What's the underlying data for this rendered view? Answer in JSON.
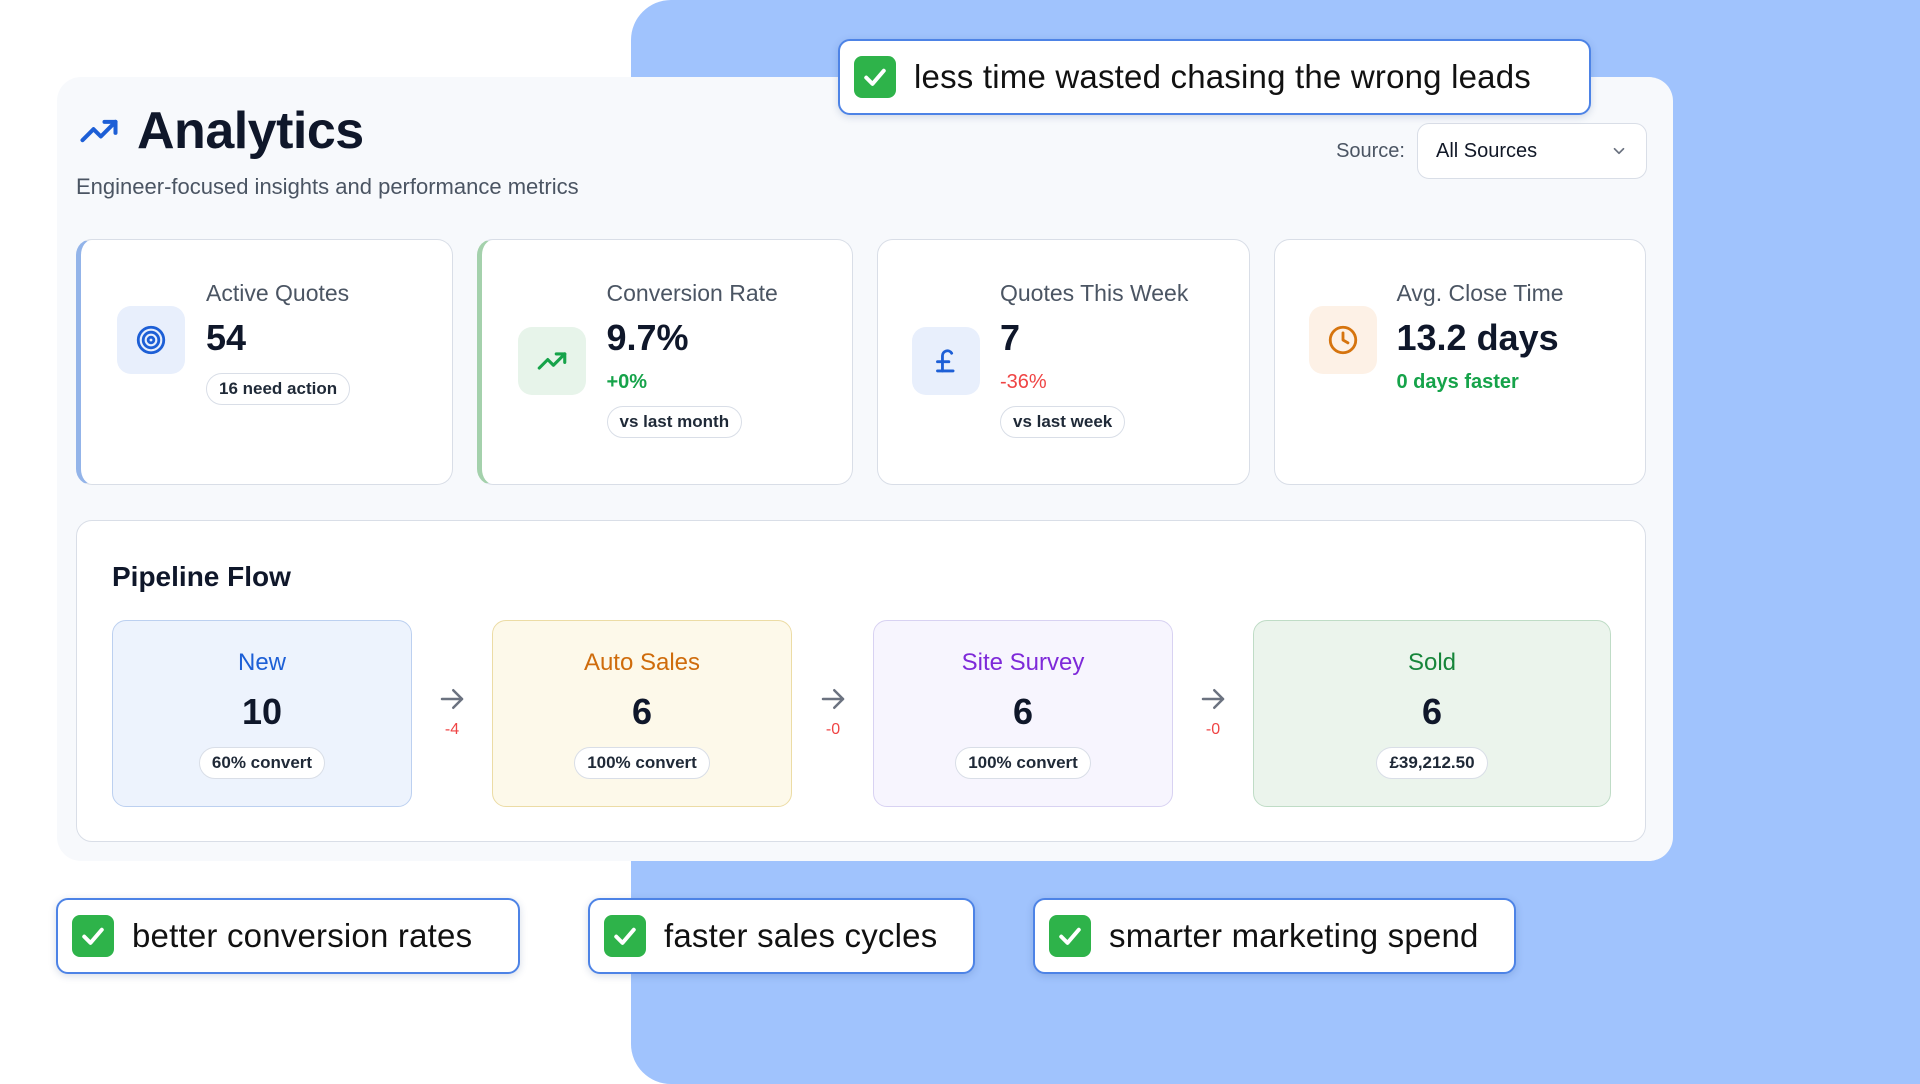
{
  "header": {
    "title": "Analytics",
    "subtitle": "Engineer-focused insights and performance metrics",
    "source_label": "Source:",
    "source_value": "All Sources"
  },
  "cards": [
    {
      "label": "Active Quotes",
      "value": "54",
      "pill": "16 need action",
      "icon": "target-icon"
    },
    {
      "label": "Conversion Rate",
      "value": "9.7%",
      "change": "+0%",
      "pill": "vs last month",
      "icon": "trending-up-icon"
    },
    {
      "label": "Quotes This Week",
      "value": "7",
      "change": "-36%",
      "pill": "vs last week",
      "icon": "pound-icon"
    },
    {
      "label": "Avg. Close Time",
      "value": "13.2 days",
      "change": "0 days faster",
      "icon": "clock-icon"
    }
  ],
  "pipeline": {
    "title": "Pipeline Flow",
    "stages": [
      {
        "name": "New",
        "count": "10",
        "pill": "60% convert"
      },
      {
        "name": "Auto Sales",
        "count": "6",
        "pill": "100% convert"
      },
      {
        "name": "Site Survey",
        "count": "6",
        "pill": "100% convert"
      },
      {
        "name": "Sold",
        "count": "6",
        "pill": "£39,212.50"
      }
    ],
    "deltas": [
      "-4",
      "-0",
      "-0"
    ]
  },
  "callouts": {
    "top": "less time wasted chasing the wrong leads",
    "one": "better conversion rates",
    "two": "faster sales cycles",
    "three": "smarter marketing spend"
  },
  "colors": {
    "background_blue": "#a0c3fd",
    "accent_blue": "#1d5fd6",
    "positive": "#16a34a",
    "negative": "#ef4444",
    "check_green": "#2eb34a"
  }
}
